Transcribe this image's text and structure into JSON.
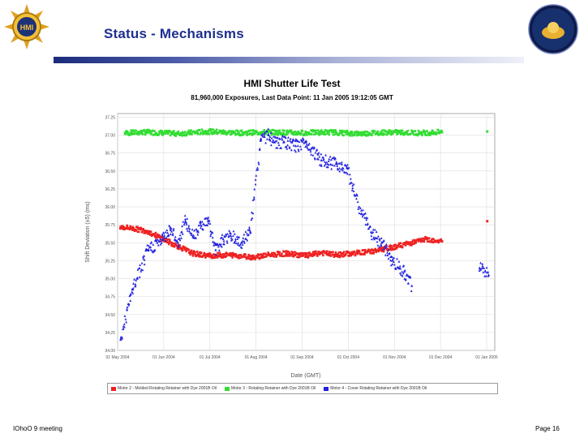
{
  "header": {
    "title": "Status - Mechanisms"
  },
  "chart_data": {
    "type": "scatter",
    "title": "HMI Shutter Life Test",
    "subtitle": "81,960,000 Exposures, Last Data Point: 11 Jan 2005 19:12:05 GMT",
    "xlabel": "Date (GMT)",
    "ylabel": "Shift Deviation (±5) (ms)",
    "x_ticks": [
      "01 May 2004",
      "01 Jun 2004",
      "01 Jul 2004",
      "01 Aug 2004",
      "01 Sep 2004",
      "01 Oct 2004",
      "01 Nov 2004",
      "01 Dec 2004",
      "01 Jan 2005"
    ],
    "y_ticks": [
      "34.00",
      "34.25",
      "34.50",
      "34.75",
      "35.00",
      "35.25",
      "35.50",
      "35.75",
      "36.00",
      "36.25",
      "36.50",
      "36.75",
      "37.00",
      "37.25"
    ],
    "ylim": [
      34.0,
      37.3
    ],
    "xlim_days": [
      0,
      250
    ],
    "series": [
      {
        "name": "Motor 3 - Rotating Retainer with Dye 2001B Oil",
        "color": "#33dd33",
        "marker": "square",
        "points": [
          [
            5,
            37.03
          ],
          [
            20,
            37.04
          ],
          [
            40,
            37.02
          ],
          [
            60,
            37.05
          ],
          [
            80,
            37.03
          ],
          [
            100,
            37.04
          ],
          [
            120,
            37.03
          ],
          [
            140,
            37.04
          ],
          [
            160,
            37.02
          ],
          [
            180,
            37.04
          ],
          [
            200,
            37.03
          ],
          [
            215,
            37.04
          ],
          [
            245,
            37.05
          ]
        ]
      },
      {
        "name": "Motor 2 - Molded Rotating Retainer with Dye 2001B Oil",
        "color": "#ee2222",
        "marker": "square",
        "points": [
          [
            2,
            35.72
          ],
          [
            10,
            35.7
          ],
          [
            20,
            35.66
          ],
          [
            30,
            35.55
          ],
          [
            40,
            35.45
          ],
          [
            50,
            35.35
          ],
          [
            60,
            35.32
          ],
          [
            75,
            35.33
          ],
          [
            90,
            35.3
          ],
          [
            100,
            35.33
          ],
          [
            112,
            35.35
          ],
          [
            125,
            35.32
          ],
          [
            135,
            35.36
          ],
          [
            145,
            35.33
          ],
          [
            155,
            35.35
          ],
          [
            165,
            35.37
          ],
          [
            175,
            35.4
          ],
          [
            185,
            35.45
          ],
          [
            195,
            35.5
          ],
          [
            205,
            35.55
          ],
          [
            215,
            35.52
          ],
          [
            245,
            35.8
          ]
        ]
      },
      {
        "name": "Motor 4 - Cover Rotating Retainer with Dye 2001B Oil",
        "color": "#2222dd",
        "marker": "triangle",
        "points": [
          [
            2,
            34.15
          ],
          [
            10,
            34.85
          ],
          [
            20,
            35.4
          ],
          [
            30,
            35.55
          ],
          [
            35,
            35.7
          ],
          [
            40,
            35.5
          ],
          [
            45,
            35.8
          ],
          [
            50,
            35.6
          ],
          [
            55,
            35.75
          ],
          [
            60,
            35.8
          ],
          [
            65,
            35.4
          ],
          [
            70,
            35.55
          ],
          [
            75,
            35.6
          ],
          [
            82,
            35.5
          ],
          [
            88,
            35.65
          ],
          [
            95,
            36.95
          ],
          [
            100,
            37.0
          ],
          [
            104,
            36.9
          ],
          [
            110,
            36.9
          ],
          [
            118,
            36.85
          ],
          [
            125,
            36.9
          ],
          [
            135,
            36.65
          ],
          [
            145,
            36.6
          ],
          [
            152,
            36.55
          ],
          [
            160,
            36.0
          ],
          [
            168,
            35.65
          ],
          [
            175,
            35.5
          ],
          [
            182,
            35.25
          ],
          [
            190,
            35.1
          ],
          [
            195,
            34.9
          ],
          [
            240,
            35.15
          ],
          [
            246,
            35.05
          ]
        ]
      }
    ]
  },
  "legend": [
    {
      "label": "Motor 2 - Molded Rotating Retainer with Dye 2001B Oil",
      "color": "#ee2222"
    },
    {
      "label": "Motor 3 - Rotating Retainer with Dye 2001B Oil",
      "color": "#33dd33"
    },
    {
      "label": "Motor 4 - Cover Rotating Retainer with Dye 2001B Oil",
      "color": "#2222dd"
    }
  ],
  "footer": {
    "left": "IOhoO 9 meeting",
    "right": "Page 16"
  },
  "colors": {
    "title": "#1f2f8f",
    "accent": "#1b2a7a"
  }
}
